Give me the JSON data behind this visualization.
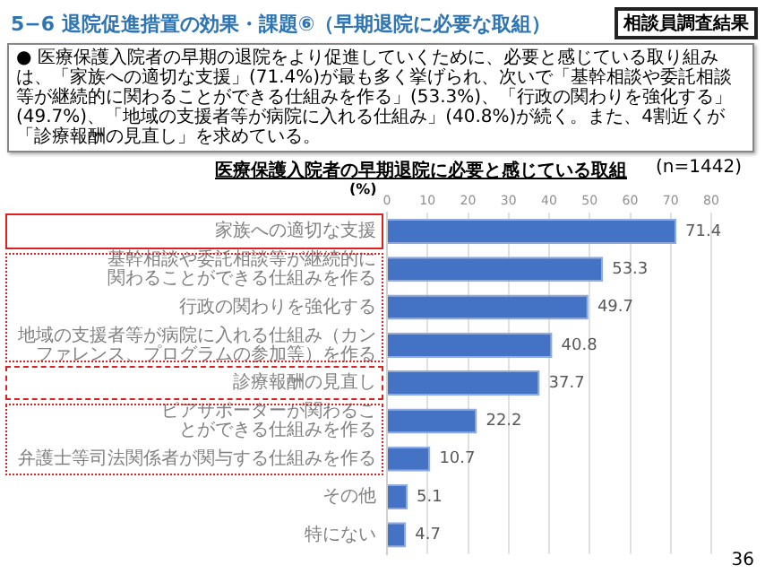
{
  "chart_data": {
    "type": "bar",
    "orientation": "horizontal",
    "title": "医療保護入院者の早期退院に必要と感じている取組",
    "subtitle": "(n=1442)",
    "xlabel": "(%)",
    "categories": [
      "家族への適切な支援",
      "基幹相談や委託相談等が継続的に関わることができる仕組みを作る",
      "行政の関わりを強化する",
      "地域の支援者等が病院に入れる仕組み（カンファレンス、プログラムの参加等）を作る",
      "診療報酬の見直し",
      "ピアサポーターが関わることができる仕組みを作る",
      "弁護士等司法関係者が関与する仕組みを作る",
      "その他",
      "特にない"
    ],
    "values": [
      71.4,
      53.3,
      49.7,
      40.8,
      37.7,
      22.2,
      10.7,
      5.1,
      4.7
    ],
    "color": "#4472c4",
    "xlim": [
      0,
      80
    ],
    "xticks": [
      0,
      10,
      20,
      30,
      40,
      50,
      60,
      70,
      80
    ],
    "grid": "x",
    "data_labels": true,
    "legend": false,
    "annotations": [
      "5−6 退院促進措置の効果・課題⑥（早期退院に必要な取組）",
      "相談員調査結果",
      "●  医療保護入院者の早期の退院をより促進していくために、必要と感じている取り組みは、「家族への適切な支援」(71.4%)が最も多く挙げられ、次いで「基幹相談や委託相談等が継続的に関わることができる仕組みを作る」(53.3%)、「行政の関わりを強化する」(49.7%)、「地域の支援者等が病院に入れる仕組み」(40.8%)が続く。また、4割近くが「診療報酬の見直し」を求めている。",
      "36"
    ]
  }
}
